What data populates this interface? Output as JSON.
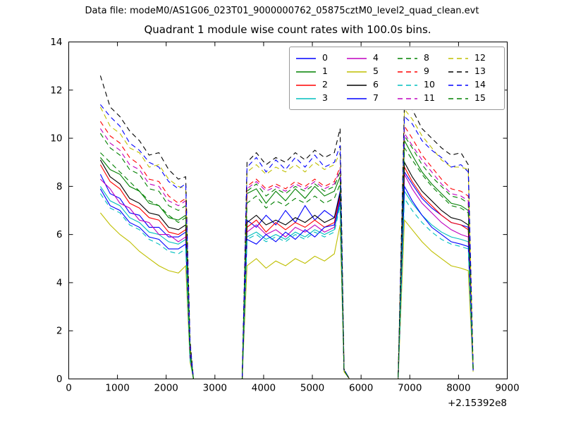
{
  "header": {
    "data_file_label": "Data file: modeM0/AS1G06_023T01_9000000762_05875cztM0_level2_quad_clean.evt"
  },
  "chart_data": {
    "type": "line",
    "title": "Quadrant 1 module wise count rates with 100.0s bins.",
    "xlabel": "",
    "ylabel": "",
    "x_offset_label": "+2.15392e8",
    "xlim": [
      0,
      9000
    ],
    "ylim": [
      0,
      14
    ],
    "x_ticks": [
      0,
      1000,
      2000,
      3000,
      4000,
      5000,
      6000,
      7000,
      8000,
      9000
    ],
    "y_ticks": [
      0,
      2,
      4,
      6,
      8,
      10,
      12,
      14
    ],
    "grid": false,
    "legend": {
      "position": "upper center",
      "columns": 4,
      "order": "column-major"
    },
    "axis_color": "#000000",
    "x": [
      650,
      850,
      1050,
      1250,
      1450,
      1650,
      1850,
      2050,
      2250,
      2400,
      2490,
      2560,
      3000,
      3560,
      3660,
      3850,
      4050,
      4250,
      4450,
      4650,
      4850,
      5050,
      5250,
      5450,
      5570,
      5650,
      5760,
      6200,
      6760,
      6890,
      7050,
      7250,
      7450,
      7650,
      7850,
      8050,
      8200,
      8300
    ],
    "series": [
      {
        "name": "0",
        "color": "#0000ff",
        "style": "solid",
        "y": [
          8.5,
          7.7,
          7.5,
          6.9,
          6.8,
          6.3,
          6.3,
          5.9,
          5.9,
          6.1,
          1.0,
          0,
          0,
          0,
          6.6,
          6.3,
          6.8,
          6.4,
          7.0,
          6.5,
          7.2,
          6.6,
          7.0,
          6.7,
          7.8,
          0.35,
          0,
          0,
          0,
          8.6,
          8.1,
          7.5,
          7.1,
          6.8,
          6.5,
          6.4,
          6.3,
          0.4
        ]
      },
      {
        "name": "1",
        "color": "#008000",
        "style": "solid",
        "y": [
          9.2,
          8.7,
          8.5,
          8.0,
          7.8,
          7.3,
          7.2,
          6.7,
          6.6,
          6.8,
          1.1,
          0,
          0,
          0,
          7.7,
          7.9,
          7.3,
          7.8,
          7.4,
          7.9,
          7.5,
          8.0,
          7.6,
          7.8,
          8.4,
          0.35,
          0,
          0,
          0,
          9.9,
          9.3,
          8.6,
          8.1,
          7.7,
          7.3,
          7.2,
          7.0,
          0.4
        ]
      },
      {
        "name": "2",
        "color": "#ff0000",
        "style": "solid",
        "y": [
          8.9,
          8.2,
          7.9,
          7.3,
          7.1,
          6.7,
          6.6,
          6.1,
          6.0,
          6.2,
          1.0,
          0,
          0,
          0,
          6.3,
          6.6,
          6.1,
          6.5,
          6.2,
          6.5,
          6.3,
          6.6,
          6.3,
          6.5,
          7.6,
          0.35,
          0,
          0,
          0,
          8.8,
          8.2,
          7.6,
          7.2,
          6.8,
          6.5,
          6.4,
          6.2,
          0.4
        ]
      },
      {
        "name": "3",
        "color": "#00bfbf",
        "style": "solid",
        "y": [
          8.0,
          7.4,
          7.2,
          6.7,
          6.5,
          6.1,
          6.0,
          5.7,
          5.6,
          5.8,
          0.9,
          0,
          0,
          0,
          5.9,
          6.1,
          5.8,
          6.0,
          5.8,
          6.1,
          5.9,
          6.2,
          6.0,
          6.2,
          7.3,
          0.35,
          0,
          0,
          0,
          7.8,
          7.3,
          6.8,
          6.4,
          6.1,
          5.9,
          5.8,
          5.7,
          0.35
        ]
      },
      {
        "name": "4",
        "color": "#bf00bf",
        "style": "solid",
        "y": [
          8.3,
          7.9,
          7.3,
          7.1,
          6.6,
          6.5,
          6.0,
          6.0,
          5.7,
          5.9,
          0.9,
          0,
          0,
          0,
          6.1,
          6.4,
          6.0,
          6.2,
          5.9,
          6.3,
          6.1,
          6.4,
          6.1,
          6.3,
          7.5,
          0.35,
          0,
          0,
          0,
          8.5,
          7.9,
          7.3,
          6.9,
          6.5,
          6.2,
          6.0,
          5.9,
          0.35
        ]
      },
      {
        "name": "5",
        "color": "#bfbf00",
        "style": "solid",
        "y": [
          6.9,
          6.4,
          6.0,
          5.7,
          5.3,
          5.0,
          4.7,
          4.5,
          4.4,
          4.7,
          0.7,
          0,
          0,
          0,
          4.7,
          5.0,
          4.6,
          4.9,
          4.7,
          5.0,
          4.8,
          5.1,
          4.9,
          5.2,
          6.4,
          0.3,
          0,
          0,
          0,
          6.6,
          6.2,
          5.7,
          5.3,
          5.0,
          4.7,
          4.6,
          4.5,
          0.3
        ]
      },
      {
        "name": "6",
        "color": "#000000",
        "style": "solid",
        "y": [
          9.1,
          8.4,
          8.1,
          7.5,
          7.3,
          6.9,
          6.8,
          6.3,
          6.2,
          6.4,
          1.0,
          0,
          0,
          0,
          6.5,
          6.8,
          6.4,
          6.6,
          6.4,
          6.7,
          6.5,
          6.8,
          6.5,
          6.7,
          7.7,
          0.35,
          0,
          0,
          0,
          9.0,
          8.4,
          7.8,
          7.4,
          7.0,
          6.7,
          6.6,
          6.4,
          0.4
        ]
      },
      {
        "name": "7",
        "color": "#0000ff",
        "style": "solid",
        "y": [
          7.9,
          7.2,
          7.0,
          6.5,
          6.3,
          5.9,
          5.8,
          5.4,
          5.4,
          5.6,
          0.9,
          0,
          0,
          0,
          5.8,
          5.6,
          6.0,
          5.7,
          6.1,
          5.8,
          6.2,
          5.9,
          6.3,
          6.4,
          7.4,
          0.35,
          0,
          0,
          0,
          8.0,
          7.4,
          6.8,
          6.3,
          6.0,
          5.7,
          5.6,
          5.5,
          0.35
        ]
      },
      {
        "name": "8",
        "color": "#008000",
        "style": "dashed",
        "y": [
          10.2,
          9.6,
          9.3,
          8.7,
          8.5,
          7.9,
          7.8,
          7.2,
          7.0,
          7.2,
          1.2,
          0,
          0,
          0,
          7.8,
          8.1,
          7.6,
          7.9,
          7.7,
          8.0,
          7.8,
          8.1,
          7.8,
          8.0,
          8.6,
          0.35,
          0,
          0,
          0,
          10.1,
          9.6,
          8.9,
          8.4,
          8.0,
          7.6,
          7.5,
          7.3,
          0.45
        ]
      },
      {
        "name": "9",
        "color": "#ff0000",
        "style": "dashed",
        "y": [
          10.7,
          10.1,
          9.8,
          9.2,
          8.9,
          8.3,
          8.2,
          7.6,
          7.3,
          7.5,
          1.3,
          0,
          0,
          0,
          8.0,
          8.3,
          7.9,
          8.1,
          7.9,
          8.2,
          8.0,
          8.3,
          8.0,
          8.2,
          8.8,
          0.35,
          0,
          0,
          0,
          10.5,
          10.0,
          9.3,
          8.8,
          8.3,
          7.9,
          7.8,
          7.6,
          0.45
        ]
      },
      {
        "name": "10",
        "color": "#00bfbf",
        "style": "dashed",
        "y": [
          7.7,
          7.1,
          6.9,
          6.4,
          6.2,
          5.8,
          5.6,
          5.3,
          5.2,
          5.4,
          0.8,
          0,
          0,
          0,
          5.8,
          6.0,
          5.7,
          5.9,
          5.7,
          6.0,
          5.8,
          6.1,
          5.9,
          6.1,
          7.2,
          0.35,
          0,
          0,
          0,
          7.5,
          7.0,
          6.5,
          6.1,
          5.8,
          5.6,
          5.5,
          5.4,
          0.35
        ]
      },
      {
        "name": "11",
        "color": "#bf00bf",
        "style": "dashed",
        "y": [
          10.4,
          9.8,
          9.5,
          8.9,
          8.7,
          8.1,
          8.0,
          7.4,
          7.2,
          7.4,
          1.3,
          0,
          0,
          0,
          7.9,
          8.2,
          7.8,
          8.0,
          7.8,
          8.1,
          7.9,
          8.2,
          7.9,
          8.1,
          8.7,
          0.35,
          0,
          0,
          0,
          10.2,
          9.7,
          9.1,
          8.6,
          8.1,
          7.7,
          7.6,
          7.4,
          0.45
        ]
      },
      {
        "name": "12",
        "color": "#bfbf00",
        "style": "dashed",
        "y": [
          11.3,
          10.5,
          10.2,
          9.6,
          9.4,
          8.8,
          8.9,
          8.3,
          8.0,
          7.9,
          1.4,
          0,
          0,
          0,
          8.6,
          8.9,
          8.5,
          8.8,
          8.6,
          8.9,
          8.6,
          9.0,
          8.7,
          8.9,
          9.4,
          0.35,
          0,
          0,
          0,
          11.2,
          10.8,
          10.1,
          9.6,
          9.1,
          8.8,
          8.8,
          8.7,
          0.5
        ]
      },
      {
        "name": "13",
        "color": "#000000",
        "style": "dashed",
        "y": [
          12.6,
          11.3,
          10.9,
          10.3,
          9.9,
          9.3,
          9.4,
          8.7,
          8.3,
          8.4,
          1.6,
          0,
          0,
          0,
          9.0,
          9.4,
          8.9,
          9.2,
          9.0,
          9.4,
          9.1,
          9.5,
          9.2,
          9.4,
          10.4,
          0.4,
          0,
          0,
          0,
          11.5,
          11.2,
          10.4,
          10.0,
          9.6,
          9.3,
          9.4,
          8.9,
          0.5
        ]
      },
      {
        "name": "14",
        "color": "#0000ff",
        "style": "dashed",
        "y": [
          11.4,
          10.9,
          10.5,
          9.8,
          9.5,
          9.0,
          8.8,
          8.2,
          7.9,
          8.1,
          1.5,
          0,
          0,
          0,
          8.8,
          9.2,
          8.6,
          9.1,
          8.7,
          9.2,
          8.8,
          9.3,
          8.8,
          9.0,
          9.7,
          0.4,
          0,
          0,
          0,
          10.9,
          10.6,
          9.9,
          9.5,
          9.2,
          8.8,
          8.9,
          8.6,
          0.5
        ]
      },
      {
        "name": "15",
        "color": "#008000",
        "style": "dashed",
        "y": [
          9.4,
          9.0,
          8.6,
          8.2,
          7.8,
          7.4,
          7.2,
          6.8,
          6.5,
          6.7,
          1.1,
          0,
          0,
          0,
          7.3,
          7.6,
          7.1,
          7.4,
          7.2,
          7.5,
          7.3,
          7.6,
          7.3,
          7.5,
          8.1,
          0.35,
          0,
          0,
          0,
          9.6,
          9.1,
          8.5,
          8.0,
          7.6,
          7.2,
          7.1,
          6.9,
          0.4
        ]
      }
    ]
  }
}
